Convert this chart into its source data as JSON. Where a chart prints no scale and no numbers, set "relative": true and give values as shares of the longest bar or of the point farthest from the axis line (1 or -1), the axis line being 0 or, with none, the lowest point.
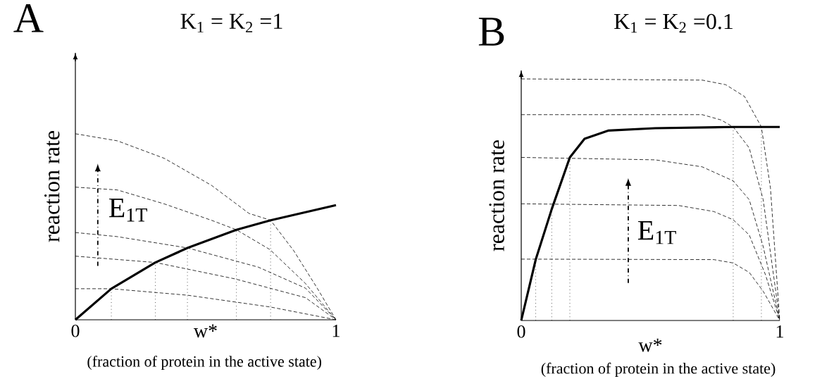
{
  "chart_data": [
    {
      "type": "line",
      "title": "K$_{1}$ = K$_{2}$ =1",
      "xlabel": "w*",
      "ylabel": "reaction rate",
      "annotations": [
        "A",
        "E$_{1T}$",
        "(fraction of protein in the active state)"
      ],
      "relative": true,
      "xlim": [
        0,
        1
      ],
      "xticks": [
        0,
        1
      ],
      "series": [
        {
          "color": "#000000",
          "line_style": "solid",
          "x": [
            0,
            0.138,
            0.307,
            0.43,
            0.618,
            0.749,
            1.0
          ],
          "values": [
            0,
            0.167,
            0.308,
            0.386,
            0.484,
            0.535,
            0.616
          ]
        },
        {
          "color": "#000000",
          "line_style": "dashed",
          "x": [
            0,
            0.161,
            0.341,
            0.522,
            0.666,
            0.749,
            0.838,
            0.928,
            1
          ],
          "values": [
            1.0,
            0.962,
            0.868,
            0.723,
            0.572,
            0.535,
            0.371,
            0.17,
            0
          ]
        },
        {
          "color": "#000000",
          "line_style": "dashed",
          "x": [
            0,
            0.161,
            0.341,
            0.522,
            0.618,
            0.747,
            0.883,
            1
          ],
          "values": [
            0.713,
            0.698,
            0.623,
            0.535,
            0.484,
            0.377,
            0.195,
            0
          ]
        },
        {
          "color": "#000000",
          "line_style": "dashed",
          "x": [
            0,
            0.161,
            0.431,
            0.702,
            0.883,
            1
          ],
          "values": [
            0.469,
            0.447,
            0.386,
            0.283,
            0.17,
            0
          ]
        },
        {
          "color": "#000000",
          "line_style": "dashed",
          "x": [
            0,
            0.307,
            0.612,
            0.883,
            1
          ],
          "values": [
            0.342,
            0.308,
            0.22,
            0.119,
            0
          ]
        },
        {
          "color": "#000000",
          "line_style": "dashed",
          "x": [
            0,
            0.138,
            0.431,
            0.747,
            1
          ],
          "values": [
            0.167,
            0.167,
            0.132,
            0.069,
            0
          ]
        },
        {
          "color": "#000000",
          "line_style": "dotted",
          "x": [
            0.138,
            0.138
          ],
          "values": [
            0,
            0.167
          ]
        },
        {
          "color": "#000000",
          "line_style": "dotted",
          "x": [
            0.307,
            0.307
          ],
          "values": [
            0,
            0.308
          ]
        },
        {
          "color": "#000000",
          "line_style": "dotted",
          "x": [
            0.43,
            0.43
          ],
          "values": [
            0,
            0.386
          ]
        },
        {
          "color": "#000000",
          "line_style": "dotted",
          "x": [
            0.618,
            0.618
          ],
          "values": [
            0,
            0.484
          ]
        },
        {
          "color": "#000000",
          "line_style": "dotted",
          "x": [
            0.749,
            0.749
          ],
          "values": [
            0,
            0.535
          ]
        }
      ]
    },
    {
      "type": "line",
      "title": "K$_{1}$ = K$_{2}$ =0.1",
      "xlabel": "w*",
      "ylabel": "reaction rate",
      "annotations": [
        "B",
        "E$_{1T}$",
        "(fraction of protein in the active state)"
      ],
      "relative": true,
      "xlim": [
        0,
        1
      ],
      "xticks": [
        0,
        1
      ],
      "series": [
        {
          "color": "#000000",
          "line_style": "solid",
          "x": [
            0,
            0.056,
            0.118,
            0.188,
            0.245,
            0.336,
            0.518,
            0.82,
            1.0
          ],
          "values": [
            0,
            0.252,
            0.461,
            0.675,
            0.752,
            0.786,
            0.796,
            0.801,
            0.801
          ]
        },
        {
          "color": "#000000",
          "line_style": "dashed",
          "x": [
            0,
            0.7,
            0.791,
            0.864,
            0.929,
            0.964,
            1
          ],
          "values": [
            1.0,
            0.995,
            0.976,
            0.927,
            0.801,
            0.549,
            0
          ]
        },
        {
          "color": "#000000",
          "line_style": "dashed",
          "x": [
            0,
            0.7,
            0.773,
            0.82,
            0.882,
            0.936,
            1
          ],
          "values": [
            0.852,
            0.852,
            0.83,
            0.801,
            0.714,
            0.5,
            0
          ]
        },
        {
          "color": "#000000",
          "line_style": "dashed",
          "x": [
            0,
            0.518,
            0.7,
            0.82,
            0.882,
            0.936,
            1
          ],
          "values": [
            0.675,
            0.665,
            0.636,
            0.578,
            0.5,
            0.306,
            0
          ]
        },
        {
          "color": "#000000",
          "line_style": "dashed",
          "x": [
            0,
            0.609,
            0.745,
            0.82,
            0.882,
            0.945,
            1
          ],
          "values": [
            0.483,
            0.476,
            0.451,
            0.417,
            0.354,
            0.189,
            0
          ]
        },
        {
          "color": "#000000",
          "line_style": "dashed",
          "x": [
            0,
            0.745,
            0.82,
            0.882,
            0.936,
            1
          ],
          "values": [
            0.254,
            0.252,
            0.238,
            0.199,
            0.121,
            0
          ]
        },
        {
          "color": "#000000",
          "line_style": "dotted",
          "x": [
            0.056,
            0.056
          ],
          "values": [
            0,
            0.252
          ]
        },
        {
          "color": "#000000",
          "line_style": "dotted",
          "x": [
            0.118,
            0.118
          ],
          "values": [
            0,
            0.461
          ]
        },
        {
          "color": "#000000",
          "line_style": "dotted",
          "x": [
            0.188,
            0.188
          ],
          "values": [
            0,
            0.675
          ]
        },
        {
          "color": "#000000",
          "line_style": "dotted",
          "x": [
            0.82,
            0.82
          ],
          "values": [
            0,
            0.801
          ]
        },
        {
          "color": "#000000",
          "line_style": "dotted",
          "x": [
            0.929,
            0.929
          ],
          "values": [
            0,
            0.801
          ]
        }
      ]
    }
  ]
}
